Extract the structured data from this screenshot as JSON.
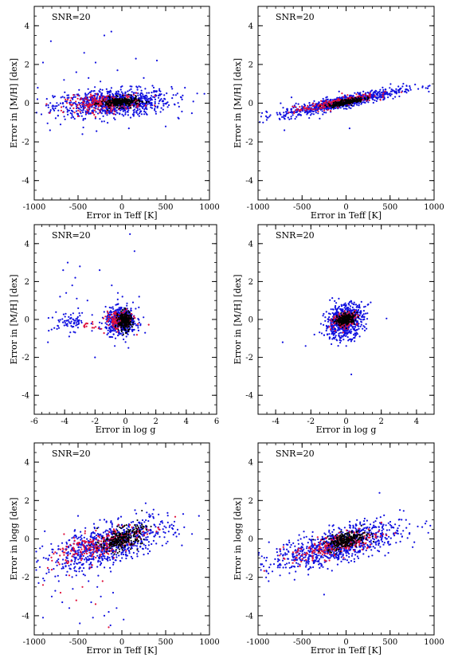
{
  "figure": {
    "colors": {
      "blue": "#1010e0",
      "red": "#e0103a",
      "black": "#000000"
    }
  },
  "chart_data": [
    {
      "type": "scatter",
      "annotation": "SNR=20",
      "xlabel": "Error in Teff [K]",
      "ylabel": "Error in [M/H] [dex]",
      "xlim": [
        -1000,
        1000
      ],
      "ylim": [
        -5,
        5
      ],
      "xticks": [
        -1000,
        -500,
        0,
        500,
        1000
      ],
      "yticks": [
        -4,
        -2,
        0,
        2,
        4
      ],
      "series": [
        {
          "color": "blue",
          "center": [
            -100,
            0.0
          ],
          "spread": [
            330,
            0.35
          ],
          "slope": 0.0002,
          "count": 900,
          "outliers": [
            [
              -810,
              3.2
            ],
            [
              -430,
              2.6
            ],
            [
              -200,
              3.5
            ],
            [
              -120,
              3.7
            ],
            [
              -520,
              1.6
            ],
            [
              -660,
              1.2
            ],
            [
              -900,
              2.1
            ],
            [
              250,
              1.3
            ],
            [
              350,
              0.9
            ],
            [
              720,
              0.8
            ],
            [
              860,
              0.5
            ],
            [
              -960,
              0.8
            ],
            [
              -300,
              2.1
            ],
            [
              -50,
              1.7
            ],
            [
              160,
              2.3
            ],
            [
              -700,
              -1.1
            ],
            [
              500,
              -1.2
            ],
            [
              -820,
              -1.4
            ],
            [
              -450,
              -1.6
            ],
            [
              650,
              -0.8
            ],
            [
              400,
              2.2
            ],
            [
              -380,
              1.3
            ],
            [
              80,
              -1.3
            ]
          ]
        },
        {
          "color": "red",
          "center": [
            -200,
            0.0
          ],
          "spread": [
            220,
            0.22
          ],
          "slope": 0.0002,
          "count": 220,
          "outliers": []
        },
        {
          "color": "black",
          "center": [
            -20,
            0.05
          ],
          "spread": [
            110,
            0.13
          ],
          "slope": 0.0002,
          "count": 250,
          "outliers": []
        }
      ]
    },
    {
      "type": "scatter",
      "annotation": "SNR=20",
      "xlabel": "Error in Teff [K]",
      "ylabel": "Error in [M/H] [dex]",
      "xlim": [
        -1000,
        1000
      ],
      "ylim": [
        -5,
        5
      ],
      "xticks": [
        -1000,
        -500,
        0,
        500,
        1000
      ],
      "yticks": [
        -4,
        -2,
        0,
        2,
        4
      ],
      "series": [
        {
          "color": "blue",
          "center": [
            -50,
            0.05
          ],
          "spread": [
            350,
            0.16
          ],
          "slope": 0.0009,
          "count": 800,
          "outliers": [
            [
              -700,
              -1.4
            ],
            [
              -620,
              0.3
            ],
            [
              -80,
              0.6
            ],
            [
              40,
              -1.3
            ],
            [
              450,
              0.7
            ],
            [
              -300,
              -0.8
            ]
          ]
        },
        {
          "color": "red",
          "center": [
            -130,
            0.0
          ],
          "spread": [
            230,
            0.12
          ],
          "slope": 0.0009,
          "count": 200,
          "outliers": []
        },
        {
          "color": "black",
          "center": [
            0,
            0.05
          ],
          "spread": [
            100,
            0.07
          ],
          "slope": 0.0009,
          "count": 220,
          "outliers": []
        }
      ]
    },
    {
      "type": "scatter",
      "annotation": "SNR=20",
      "xlabel": "Error in log g",
      "ylabel": "Error in [M/H] [dex]",
      "xlim": [
        -6,
        6
      ],
      "ylim": [
        -5,
        5
      ],
      "xticks": [
        -6,
        -4,
        -2,
        0,
        2,
        4,
        6
      ],
      "yticks": [
        -4,
        -2,
        0,
        2,
        4
      ],
      "series": [
        {
          "color": "blue",
          "center": [
            -0.3,
            -0.1
          ],
          "spread": [
            0.5,
            0.35
          ],
          "slope": 0,
          "count": 500,
          "outliers": [
            [
              -4.1,
              2.6
            ],
            [
              -3.8,
              3.0
            ],
            [
              -3.3,
              2.2
            ],
            [
              -3.9,
              1.4
            ],
            [
              -3.2,
              1.1
            ],
            [
              -3.5,
              1.8
            ],
            [
              -4.3,
              1.2
            ],
            [
              -3.0,
              2.8
            ],
            [
              -2.5,
              1.0
            ],
            [
              -1.7,
              2.6
            ],
            [
              -0.9,
              1.8
            ],
            [
              -0.5,
              1.4
            ],
            [
              -0.2,
              1.2
            ],
            [
              0.3,
              4.5
            ],
            [
              0.6,
              3.6
            ],
            [
              0.9,
              1.2
            ],
            [
              -4.5,
              -0.5
            ],
            [
              -3.6,
              -0.2
            ],
            [
              -3.0,
              0.2
            ],
            [
              -2.7,
              -0.4
            ],
            [
              -4.8,
              0.1
            ],
            [
              -5.1,
              -1.2
            ],
            [
              -2.0,
              -2.0
            ],
            [
              -0.7,
              -1.4
            ],
            [
              0.2,
              -1.5
            ],
            [
              -3.7,
              -0.9
            ],
            [
              -2.2,
              -0.6
            ],
            [
              -1.4,
              0.4
            ],
            [
              -1.2,
              -0.8
            ],
            [
              0.5,
              0.9
            ]
          ]
        },
        {
          "color": "blue",
          "center": [
            -3.6,
            -0.1
          ],
          "spread": [
            0.6,
            0.25
          ],
          "slope": 0,
          "count": 70,
          "outliers": []
        },
        {
          "color": "red",
          "center": [
            -0.4,
            -0.05
          ],
          "spread": [
            0.45,
            0.25
          ],
          "slope": 0,
          "count": 150,
          "outliers": []
        },
        {
          "color": "red",
          "center": [
            -2.3,
            -0.35
          ],
          "spread": [
            0.3,
            0.1
          ],
          "slope": 0,
          "count": 14,
          "outliers": []
        },
        {
          "color": "black",
          "center": [
            -0.05,
            -0.1
          ],
          "spread": [
            0.22,
            0.25
          ],
          "slope": 0,
          "count": 250,
          "outliers": []
        }
      ]
    },
    {
      "type": "scatter",
      "annotation": "SNR=20",
      "xlabel": "Error in log g",
      "ylabel": "Error in [M/H] [dex]",
      "xlim": [
        -5,
        5
      ],
      "ylim": [
        -5,
        5
      ],
      "xticks": [
        -4,
        -2,
        0,
        2,
        4
      ],
      "yticks": [
        -4,
        -2,
        0,
        2,
        4
      ],
      "series": [
        {
          "color": "blue",
          "center": [
            -0.1,
            -0.1
          ],
          "spread": [
            0.55,
            0.45
          ],
          "slope": 0.2,
          "count": 650,
          "outliers": [
            [
              -3.6,
              -1.2
            ],
            [
              -2.3,
              -1.4
            ],
            [
              0.3,
              -2.9
            ],
            [
              2.3,
              0.05
            ],
            [
              -1.8,
              -0.8
            ],
            [
              1.4,
              0.9
            ]
          ]
        },
        {
          "color": "red",
          "center": [
            -0.05,
            0.0
          ],
          "spread": [
            0.35,
            0.2
          ],
          "slope": 0.2,
          "count": 170,
          "outliers": []
        },
        {
          "color": "black",
          "center": [
            0.0,
            0.0
          ],
          "spread": [
            0.25,
            0.14
          ],
          "slope": 0.2,
          "count": 240,
          "outliers": []
        }
      ]
    },
    {
      "type": "scatter",
      "annotation": "SNR=20",
      "xlabel": "Error in Teff [K]",
      "ylabel": "Error in logg [dex]",
      "xlim": [
        -1000,
        1000
      ],
      "ylim": [
        -5,
        5
      ],
      "xticks": [
        -1000,
        -500,
        0,
        500,
        1000
      ],
      "yticks": [
        -4,
        -2,
        0,
        2,
        4
      ],
      "series": [
        {
          "color": "blue",
          "center": [
            -150,
            -0.3
          ],
          "spread": [
            350,
            0.5
          ],
          "slope": 0.0012,
          "count": 800,
          "outliers": [
            [
              -900,
              -4.1
            ],
            [
              -800,
              -3.0
            ],
            [
              -720,
              -2.2
            ],
            [
              -600,
              -3.6
            ],
            [
              -560,
              -2.6
            ],
            [
              -480,
              -4.4
            ],
            [
              -420,
              -1.9
            ],
            [
              -350,
              -3.3
            ],
            [
              -280,
              -2.5
            ],
            [
              -200,
              -4.0
            ],
            [
              -130,
              -4.5
            ],
            [
              -60,
              -3.6
            ],
            [
              20,
              -4.2
            ],
            [
              -640,
              -1.4
            ],
            [
              -760,
              -2.7
            ],
            [
              -860,
              -1.8
            ],
            [
              -330,
              -4.1
            ],
            [
              -240,
              -3.0
            ],
            [
              -100,
              -2.8
            ],
            [
              -950,
              -2.3
            ],
            [
              -680,
              -3.3
            ],
            [
              -520,
              -1.9
            ],
            [
              -380,
              -2.2
            ],
            [
              -150,
              -3.8
            ],
            [
              700,
              1.3
            ],
            [
              880,
              1.2
            ],
            [
              600,
              0.9
            ],
            [
              -500,
              1.2
            ],
            [
              -880,
              0.4
            ],
            [
              -200,
              1.0
            ],
            [
              150,
              1.5
            ],
            [
              350,
              1.3
            ]
          ]
        },
        {
          "color": "red",
          "center": [
            -250,
            -0.3
          ],
          "spread": [
            260,
            0.35
          ],
          "slope": 0.0012,
          "count": 230,
          "outliers": [
            [
              -900,
              -2.4
            ],
            [
              -800,
              -1.6
            ],
            [
              -700,
              -2.8
            ],
            [
              -600,
              -1.9
            ],
            [
              -520,
              -3.2
            ],
            [
              -450,
              -2.5
            ],
            [
              -360,
              -1.5
            ],
            [
              -300,
              -3.4
            ],
            [
              -220,
              -2.2
            ],
            [
              -150,
              -4.6
            ]
          ]
        },
        {
          "color": "black",
          "center": [
            0,
            0.0
          ],
          "spread": [
            120,
            0.28
          ],
          "slope": 0.0012,
          "count": 260,
          "outliers": []
        }
      ]
    },
    {
      "type": "scatter",
      "annotation": "SNR=20",
      "xlabel": "Error in Teff [K]",
      "ylabel": "Error in logg [dex]",
      "xlim": [
        -1000,
        1000
      ],
      "ylim": [
        -5,
        5
      ],
      "xticks": [
        -1000,
        -500,
        0,
        500,
        1000
      ],
      "yticks": [
        -4,
        -2,
        0,
        2,
        4
      ],
      "series": [
        {
          "color": "blue",
          "center": [
            -100,
            -0.35
          ],
          "spread": [
            370,
            0.45
          ],
          "slope": 0.0011,
          "count": 850,
          "outliers": [
            [
              -250,
              -2.9
            ],
            [
              380,
              2.4
            ],
            [
              -750,
              -1.9
            ],
            [
              -880,
              -2.2
            ],
            [
              600,
              1.0
            ],
            [
              -400,
              -1.5
            ],
            [
              900,
              0.8
            ],
            [
              -550,
              -0.7
            ]
          ]
        },
        {
          "color": "red",
          "center": [
            -100,
            -0.3
          ],
          "spread": [
            250,
            0.3
          ],
          "slope": 0.0011,
          "count": 220,
          "outliers": []
        },
        {
          "color": "black",
          "center": [
            0,
            -0.05
          ],
          "spread": [
            110,
            0.2
          ],
          "slope": 0.0011,
          "count": 260,
          "outliers": []
        }
      ]
    }
  ]
}
